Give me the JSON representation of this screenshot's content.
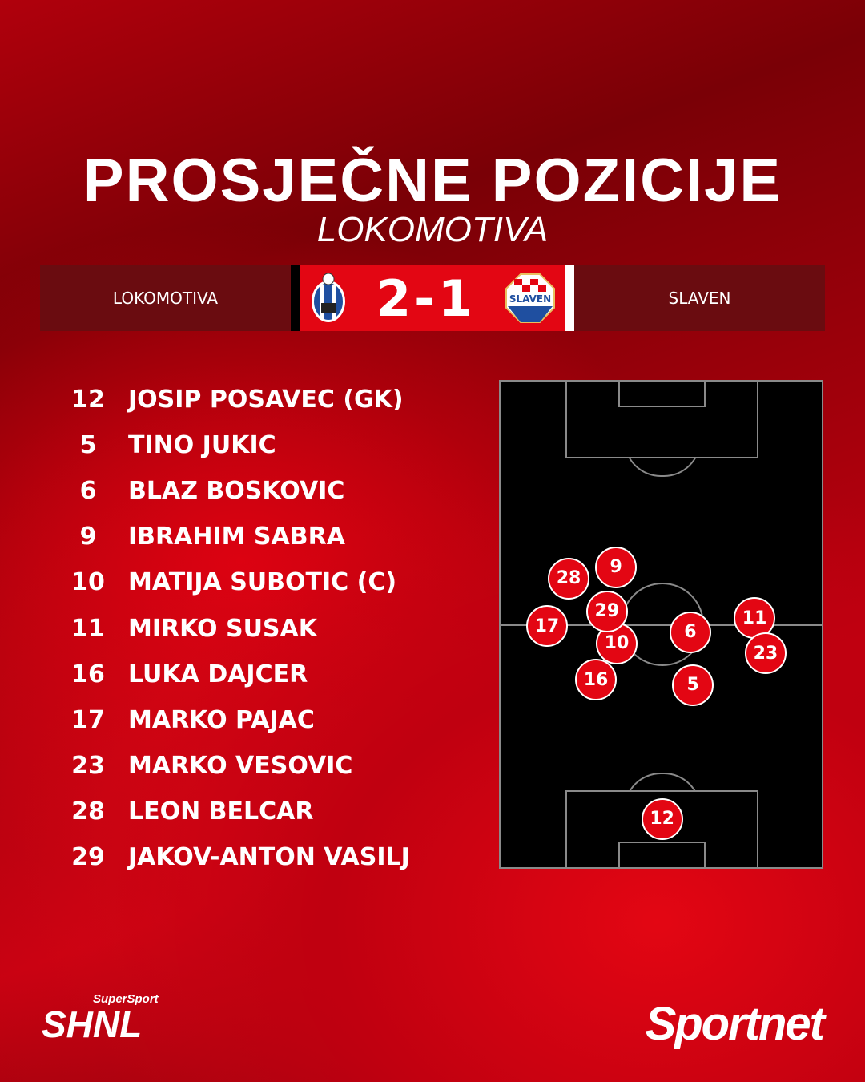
{
  "title": "PROSJEČNE POZICIJE",
  "subtitle": "LOKOMOTIVA",
  "match": {
    "home": "LOKOMOTIVA",
    "away": "SLAVEN",
    "score": "2-1",
    "home_crest": "Lokomotiva crest",
    "away_crest": "Slaven crest",
    "away_crest_text": "SLAVEN"
  },
  "players": [
    {
      "number": "12",
      "name": "JOSIP POSAVEC (GK)",
      "x": 49.8,
      "y": 89.5
    },
    {
      "number": "5",
      "name": "TINO JUKIC",
      "x": 59.3,
      "y": 62.1
    },
    {
      "number": "6",
      "name": "BLAZ BOSKOVIC",
      "x": 58.5,
      "y": 51.3
    },
    {
      "number": "9",
      "name": "IBRAHIM SABRA",
      "x": 35.6,
      "y": 38.0
    },
    {
      "number": "10",
      "name": "MATIJA SUBOTIC (C)",
      "x": 35.8,
      "y": 53.6
    },
    {
      "number": "11",
      "name": "MIRKO SUSAK",
      "x": 78.3,
      "y": 48.4
    },
    {
      "number": "16",
      "name": "LUKA DAJCER",
      "x": 29.4,
      "y": 61.0
    },
    {
      "number": "17",
      "name": "MARKO PAJAC",
      "x": 14.3,
      "y": 50.0
    },
    {
      "number": "23",
      "name": "MARKO VESOVIC",
      "x": 81.7,
      "y": 55.6
    },
    {
      "number": "28",
      "name": "LEON BELCAR",
      "x": 21.0,
      "y": 40.3
    },
    {
      "number": "29",
      "name": "JAKOV-ANTON VASILJ",
      "x": 32.8,
      "y": 47.0
    }
  ],
  "logos": {
    "league_top": "SuperSport",
    "league": "SHNL",
    "brand": "Sportnet"
  },
  "colors": {
    "accent": "#e30613",
    "dark": "#6a0c10"
  }
}
